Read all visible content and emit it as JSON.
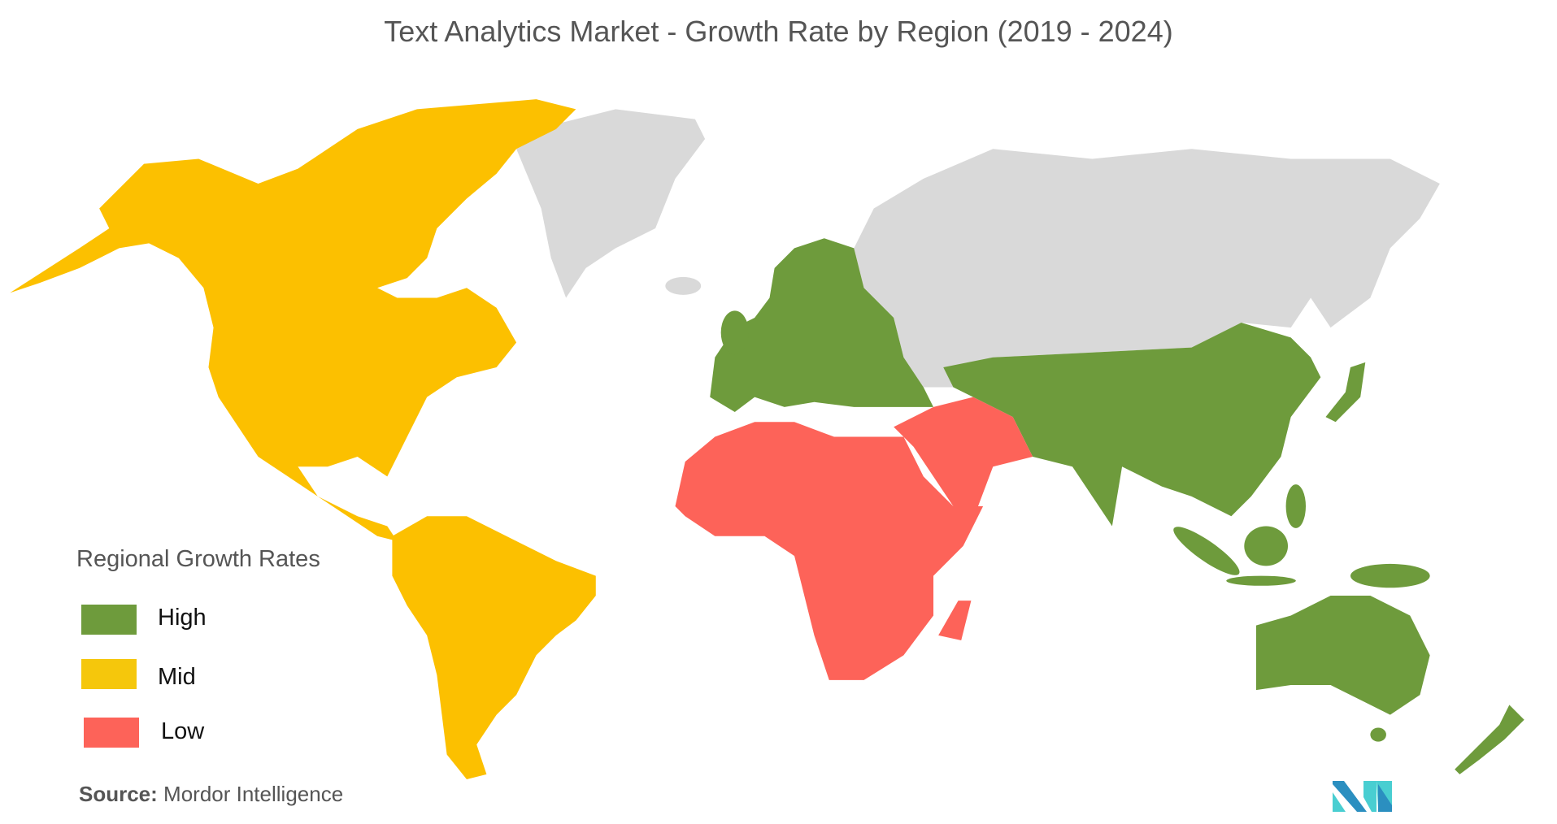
{
  "title": "Text Analytics Market  - Growth Rate by Region (2019 - 2024)",
  "legend": {
    "title": "Regional Growth Rates",
    "items": [
      {
        "label": "High",
        "color": "#6e9b3c"
      },
      {
        "label": "Mid",
        "color": "#f5c70c"
      },
      {
        "label": "Low",
        "color": "#fd6359"
      }
    ]
  },
  "no_data_color": "#d9d9d9",
  "regions": {
    "North America": "Mid",
    "South America": "Mid",
    "Europe": "High",
    "Asia-Pacific": "High",
    "Middle East and Africa": "Low"
  },
  "source": {
    "label": "Source:",
    "value": "Mordor Intelligence"
  },
  "logo": "Mordor Intelligence"
}
